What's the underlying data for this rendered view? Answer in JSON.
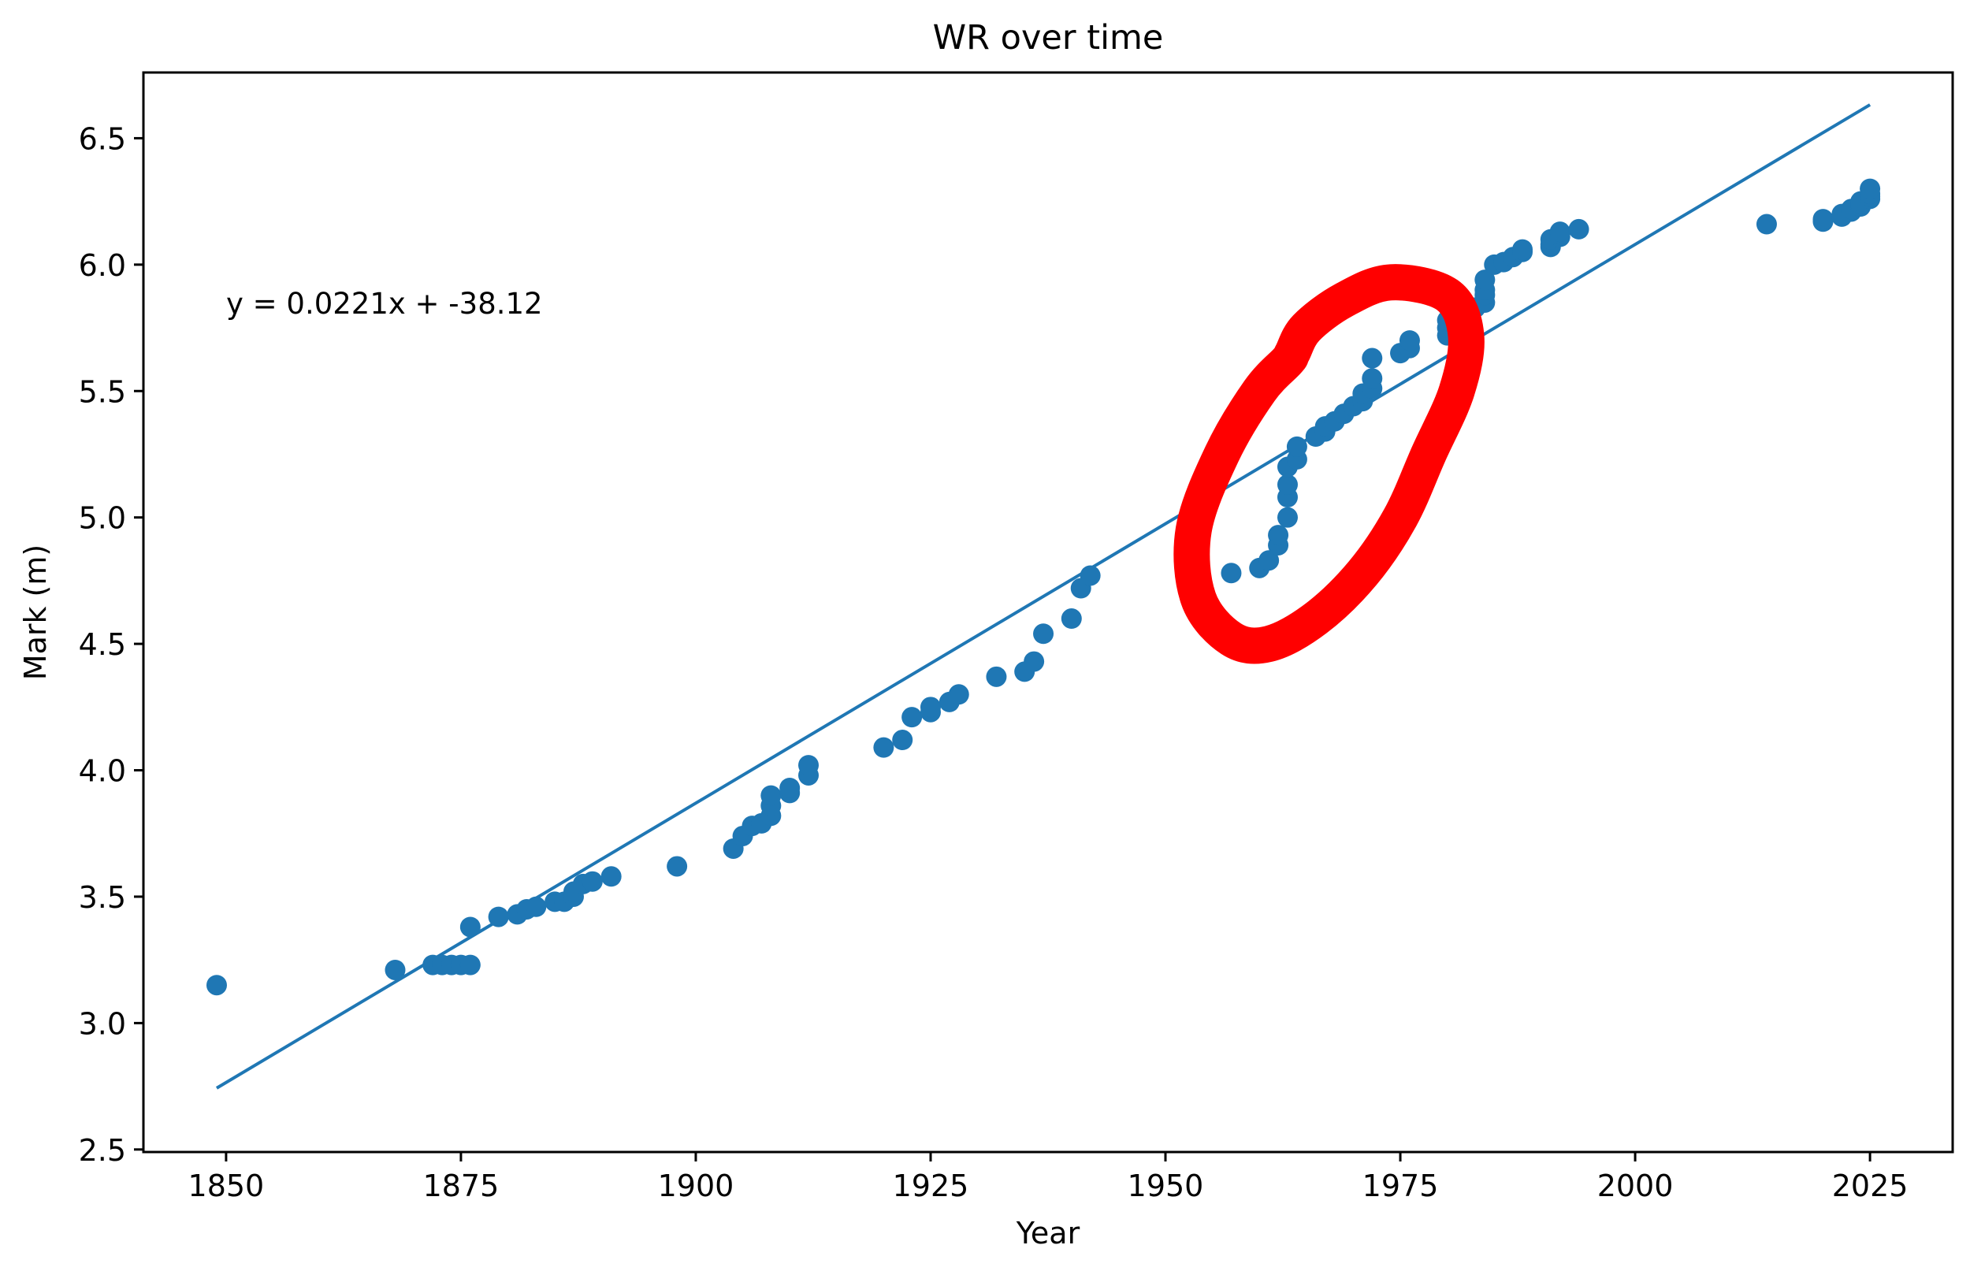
{
  "chart_data": {
    "type": "scatter",
    "title": "WR over time",
    "xlabel": "Year",
    "ylabel": "Mark (m)",
    "xlim": [
      1841.2,
      2033.8
    ],
    "ylim": [
      2.49,
      6.76
    ],
    "xticks": [
      1850,
      1875,
      1900,
      1925,
      1950,
      1975,
      2000,
      2025
    ],
    "yticks": [
      2.5,
      3.0,
      3.5,
      4.0,
      4.5,
      5.0,
      5.5,
      6.0,
      6.5
    ],
    "grid": false,
    "annotation": "y = 0.0221x + -38.12",
    "fit_line": {
      "slope": 0.0221,
      "intercept": -38.12,
      "x_start": 1849,
      "x_end": 2025
    },
    "colors": {
      "points": "#1f77b4",
      "line": "#1f77b4",
      "highlight": "#ff0000"
    },
    "highlight": {
      "shape": "hand-drawn-ellipse",
      "x_range": [
        1953,
        1984
      ],
      "y_range": [
        4.46,
        5.96
      ]
    },
    "points": [
      [
        1849,
        3.15
      ],
      [
        1868,
        3.21
      ],
      [
        1872,
        3.23
      ],
      [
        1873,
        3.23
      ],
      [
        1874,
        3.23
      ],
      [
        1875,
        3.23
      ],
      [
        1876,
        3.23
      ],
      [
        1876,
        3.38
      ],
      [
        1879,
        3.42
      ],
      [
        1881,
        3.43
      ],
      [
        1882,
        3.45
      ],
      [
        1883,
        3.46
      ],
      [
        1885,
        3.48
      ],
      [
        1886,
        3.48
      ],
      [
        1887,
        3.5
      ],
      [
        1887,
        3.52
      ],
      [
        1888,
        3.55
      ],
      [
        1889,
        3.56
      ],
      [
        1891,
        3.58
      ],
      [
        1898,
        3.62
      ],
      [
        1904,
        3.69
      ],
      [
        1905,
        3.74
      ],
      [
        1906,
        3.78
      ],
      [
        1907,
        3.79
      ],
      [
        1908,
        3.82
      ],
      [
        1908,
        3.86
      ],
      [
        1908,
        3.9
      ],
      [
        1910,
        3.91
      ],
      [
        1910,
        3.93
      ],
      [
        1912,
        3.98
      ],
      [
        1912,
        4.02
      ],
      [
        1920,
        4.09
      ],
      [
        1922,
        4.12
      ],
      [
        1923,
        4.21
      ],
      [
        1925,
        4.23
      ],
      [
        1925,
        4.25
      ],
      [
        1927,
        4.27
      ],
      [
        1928,
        4.3
      ],
      [
        1932,
        4.37
      ],
      [
        1935,
        4.39
      ],
      [
        1936,
        4.43
      ],
      [
        1937,
        4.54
      ],
      [
        1940,
        4.6
      ],
      [
        1941,
        4.72
      ],
      [
        1942,
        4.77
      ],
      [
        1957,
        4.78
      ],
      [
        1960,
        4.8
      ],
      [
        1961,
        4.83
      ],
      [
        1962,
        4.89
      ],
      [
        1962,
        4.93
      ],
      [
        1963,
        5.0
      ],
      [
        1963,
        5.08
      ],
      [
        1963,
        5.13
      ],
      [
        1963,
        5.2
      ],
      [
        1964,
        5.23
      ],
      [
        1964,
        5.28
      ],
      [
        1966,
        5.32
      ],
      [
        1967,
        5.34
      ],
      [
        1967,
        5.36
      ],
      [
        1968,
        5.38
      ],
      [
        1969,
        5.41
      ],
      [
        1970,
        5.44
      ],
      [
        1971,
        5.46
      ],
      [
        1971,
        5.49
      ],
      [
        1972,
        5.51
      ],
      [
        1972,
        5.55
      ],
      [
        1972,
        5.63
      ],
      [
        1975,
        5.65
      ],
      [
        1976,
        5.67
      ],
      [
        1976,
        5.7
      ],
      [
        1980,
        5.72
      ],
      [
        1980,
        5.75
      ],
      [
        1980,
        5.78
      ],
      [
        1981,
        5.8
      ],
      [
        1983,
        5.83
      ],
      [
        1984,
        5.85
      ],
      [
        1984,
        5.88
      ],
      [
        1984,
        5.9
      ],
      [
        1984,
        5.94
      ],
      [
        1985,
        6.0
      ],
      [
        1986,
        6.01
      ],
      [
        1987,
        6.03
      ],
      [
        1988,
        6.05
      ],
      [
        1988,
        6.06
      ],
      [
        1991,
        6.07
      ],
      [
        1991,
        6.08
      ],
      [
        1991,
        6.1
      ],
      [
        1992,
        6.11
      ],
      [
        1992,
        6.12
      ],
      [
        1992,
        6.13
      ],
      [
        1994,
        6.14
      ],
      [
        2014,
        6.16
      ],
      [
        2020,
        6.17
      ],
      [
        2020,
        6.18
      ],
      [
        2022,
        6.19
      ],
      [
        2022,
        6.2
      ],
      [
        2023,
        6.21
      ],
      [
        2023,
        6.22
      ],
      [
        2024,
        6.23
      ],
      [
        2024,
        6.24
      ],
      [
        2024,
        6.25
      ],
      [
        2025,
        6.26
      ],
      [
        2025,
        6.27
      ],
      [
        2025,
        6.28
      ],
      [
        2025,
        6.3
      ]
    ]
  }
}
